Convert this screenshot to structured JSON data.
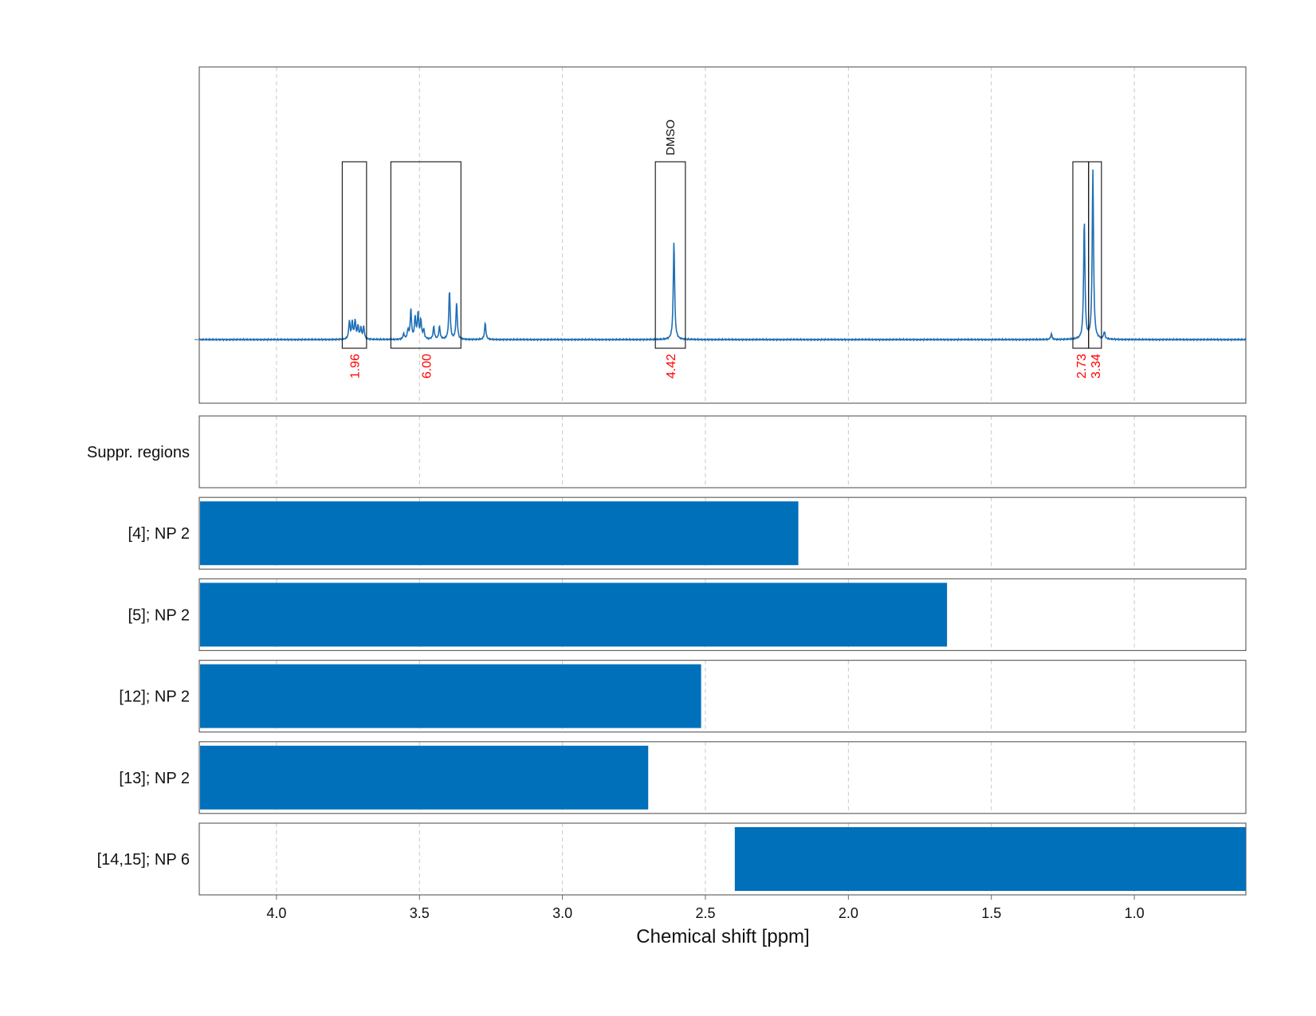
{
  "chart_data": {
    "type": "line",
    "xlabel": "Chemical shift [ppm]",
    "xlim": [
      4.27,
      0.61
    ],
    "x_ticks": [
      4.0,
      3.5,
      3.0,
      2.5,
      2.0,
      1.5,
      1.0
    ],
    "x_tick_labels": [
      "4.0",
      "3.5",
      "3.0",
      "2.5",
      "2.0",
      "1.5",
      "1.0"
    ],
    "grid": true,
    "spectrum": {
      "color": "#1f6fb5",
      "baseline": 0,
      "ylim": [
        -0.35,
        1.5
      ],
      "peaks": [
        {
          "x": 3.745,
          "h": 0.1
        },
        {
          "x": 3.735,
          "h": 0.09
        },
        {
          "x": 3.725,
          "h": 0.1
        },
        {
          "x": 3.715,
          "h": 0.07
        },
        {
          "x": 3.705,
          "h": 0.06
        },
        {
          "x": 3.695,
          "h": 0.07
        },
        {
          "x": 3.555,
          "h": 0.03
        },
        {
          "x": 3.54,
          "h": 0.05
        },
        {
          "x": 3.53,
          "h": 0.16
        },
        {
          "x": 3.515,
          "h": 0.12
        },
        {
          "x": 3.505,
          "h": 0.14
        },
        {
          "x": 3.495,
          "h": 0.1
        },
        {
          "x": 3.485,
          "h": 0.05
        },
        {
          "x": 3.45,
          "h": 0.07
        },
        {
          "x": 3.43,
          "h": 0.07
        },
        {
          "x": 3.395,
          "h": 0.27
        },
        {
          "x": 3.37,
          "h": 0.2
        },
        {
          "x": 3.27,
          "h": 0.09
        },
        {
          "x": 2.61,
          "h": 0.54
        },
        {
          "x": 1.29,
          "h": 0.03
        },
        {
          "x": 1.175,
          "h": 0.65
        },
        {
          "x": 1.145,
          "h": 0.93
        },
        {
          "x": 1.105,
          "h": 0.04
        }
      ]
    },
    "integration_regions": [
      {
        "x_start": 3.77,
        "x_end": 3.685,
        "label": "1.96"
      },
      {
        "x_start": 3.6,
        "x_end": 3.355,
        "label": "6.00"
      },
      {
        "x_start": 2.675,
        "x_end": 2.57,
        "label": "4.42",
        "annotation": "DMSO"
      },
      {
        "x_start": 1.215,
        "x_end": 1.16,
        "label": "2.73"
      },
      {
        "x_start": 1.16,
        "x_end": 1.115,
        "label": "3.34"
      }
    ],
    "integration_label_color": "#ff0000",
    "rows": [
      {
        "label": "Suppr. regions",
        "bars": []
      },
      {
        "label": "[4]; NP 2",
        "bars": [
          {
            "x_start": 4.27,
            "x_end": 2.175
          }
        ]
      },
      {
        "label": "[5]; NP 2",
        "bars": [
          {
            "x_start": 4.27,
            "x_end": 1.655
          }
        ]
      },
      {
        "label": "[12]; NP 2",
        "bars": [
          {
            "x_start": 4.27,
            "x_end": 2.515
          }
        ]
      },
      {
        "label": "[13]; NP 2",
        "bars": [
          {
            "x_start": 4.27,
            "x_end": 2.7
          }
        ]
      },
      {
        "label": "[14,15]; NP 6",
        "bars": [
          {
            "x_start": 2.4,
            "x_end": 0.61
          }
        ]
      }
    ],
    "bar_color": "#0070bb"
  }
}
